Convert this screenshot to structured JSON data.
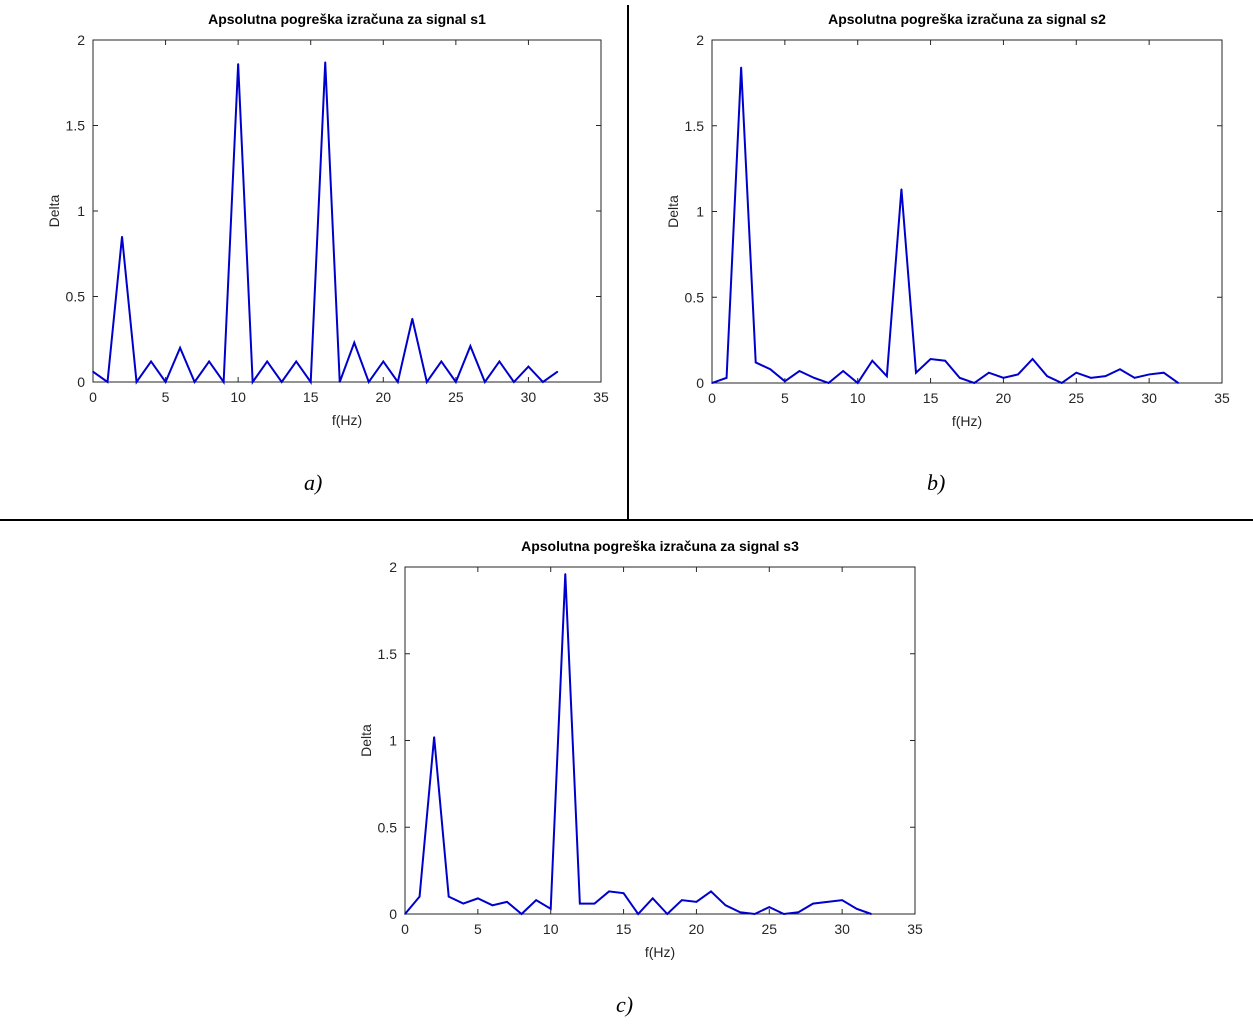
{
  "chart_data": [
    {
      "type": "line",
      "title": "Apsolutna pogreška izračuna za signal s1",
      "xlabel": "f(Hz)",
      "ylabel": "Delta",
      "xlim": [
        0,
        35
      ],
      "ylim": [
        0,
        2
      ],
      "xticks": [
        "0",
        "5",
        "10",
        "15",
        "20",
        "25",
        "30",
        "35"
      ],
      "yticks": [
        "0",
        "0.5",
        "1",
        "1.5",
        "2"
      ],
      "color": "#0000cc",
      "caption": "a)",
      "x": [
        0,
        1,
        2,
        3,
        4,
        5,
        6,
        7,
        8,
        9,
        10,
        11,
        12,
        13,
        14,
        15,
        16,
        17,
        18,
        19,
        20,
        21,
        22,
        23,
        24,
        25,
        26,
        27,
        28,
        29,
        30,
        31,
        32
      ],
      "y": [
        0.06,
        0,
        0.85,
        0,
        0.12,
        0,
        0.2,
        0,
        0.12,
        0,
        1.86,
        0,
        0.12,
        0,
        0.12,
        0,
        1.87,
        0,
        0.23,
        0,
        0.12,
        0,
        0.37,
        0,
        0.12,
        0,
        0.21,
        0,
        0.12,
        0,
        0.09,
        0,
        0.06
      ]
    },
    {
      "type": "line",
      "title": "Apsolutna pogreška izračuna za signal s2",
      "xlabel": "f(Hz)",
      "ylabel": "Delta",
      "xlim": [
        0,
        35
      ],
      "ylim": [
        0,
        2
      ],
      "xticks": [
        "0",
        "5",
        "10",
        "15",
        "20",
        "25",
        "30",
        "35"
      ],
      "yticks": [
        "0",
        "0.5",
        "1",
        "1.5",
        "2"
      ],
      "color": "#0000cc",
      "caption": "b)",
      "x": [
        0,
        1,
        2,
        3,
        4,
        5,
        6,
        7,
        8,
        9,
        10,
        11,
        12,
        13,
        14,
        15,
        16,
        17,
        18,
        19,
        20,
        21,
        22,
        23,
        24,
        25,
        26,
        27,
        28,
        29,
        30,
        31,
        32
      ],
      "y": [
        0,
        0.03,
        1.84,
        0.12,
        0.08,
        0.01,
        0.07,
        0.03,
        0,
        0.07,
        0,
        0.13,
        0.04,
        1.13,
        0.06,
        0.14,
        0.13,
        0.03,
        0,
        0.06,
        0.03,
        0.05,
        0.14,
        0.04,
        0,
        0.06,
        0.03,
        0.04,
        0.08,
        0.03,
        0.05,
        0.06,
        0
      ]
    },
    {
      "type": "line",
      "title": "Apsolutna pogreška izračuna za signal s3",
      "xlabel": "f(Hz)",
      "ylabel": "Delta",
      "xlim": [
        0,
        35
      ],
      "ylim": [
        0,
        2
      ],
      "xticks": [
        "0",
        "5",
        "10",
        "15",
        "20",
        "25",
        "30",
        "35"
      ],
      "yticks": [
        "0",
        "0.5",
        "1",
        "1.5",
        "2"
      ],
      "color": "#0000cc",
      "caption": "c)",
      "x": [
        0,
        1,
        2,
        3,
        4,
        5,
        6,
        7,
        8,
        9,
        10,
        11,
        12,
        13,
        14,
        15,
        16,
        17,
        18,
        19,
        20,
        21,
        22,
        23,
        24,
        25,
        26,
        27,
        28,
        29,
        30,
        31,
        32
      ],
      "y": [
        0,
        0.1,
        1.02,
        0.1,
        0.06,
        0.09,
        0.05,
        0.07,
        0,
        0.08,
        0.03,
        1.96,
        0.06,
        0.06,
        0.13,
        0.12,
        0,
        0.09,
        0,
        0.08,
        0.07,
        0.13,
        0.05,
        0.01,
        0,
        0.04,
        0,
        0.01,
        0.06,
        0.07,
        0.08,
        0.03,
        0
      ]
    }
  ]
}
